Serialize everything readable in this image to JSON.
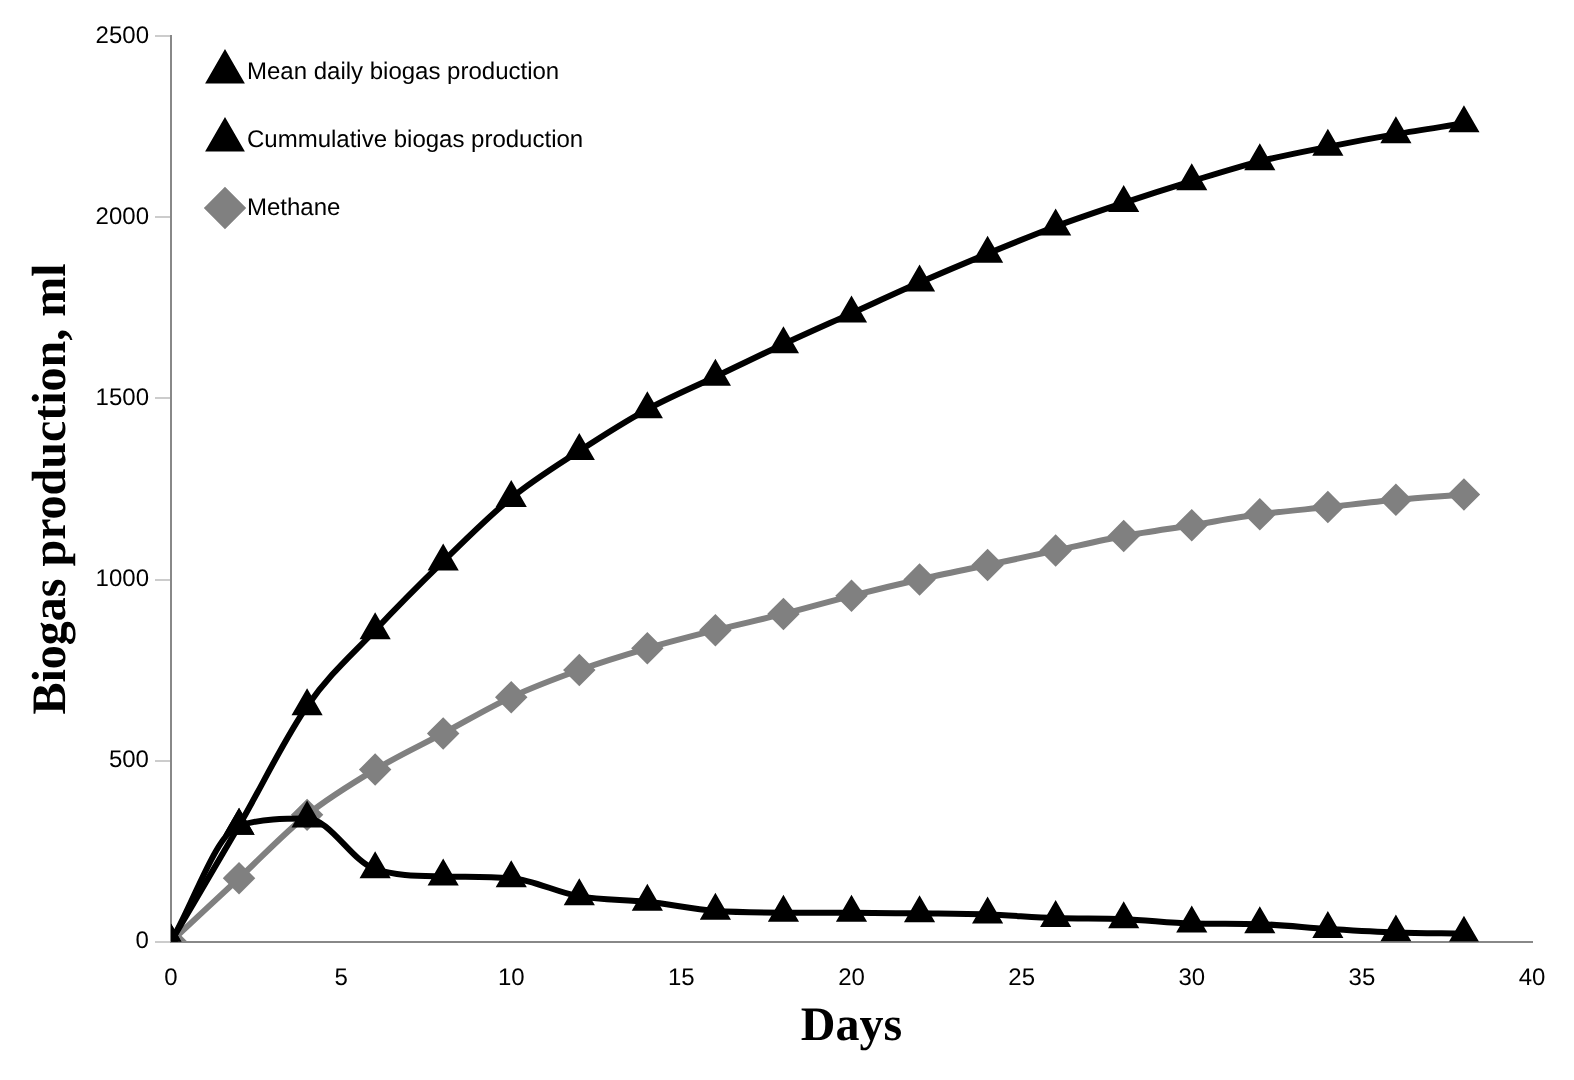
{
  "chart_data": {
    "type": "line",
    "xlabel": "Days",
    "ylabel": "Biogas production, ml",
    "x": [
      0,
      2,
      4,
      6,
      8,
      10,
      12,
      14,
      16,
      18,
      20,
      22,
      24,
      26,
      28,
      30,
      32,
      34,
      36,
      38
    ],
    "series": [
      {
        "name": "Mean daily biogas production",
        "color": "#000000",
        "marker": "triangle",
        "values": [
          0,
          320,
          340,
          200,
          180,
          175,
          125,
          110,
          85,
          80,
          80,
          78,
          75,
          65,
          62,
          50,
          48,
          35,
          25,
          22
        ]
      },
      {
        "name": "Cummulative biogas production",
        "color": "#000000",
        "marker": "triangle",
        "values": [
          0,
          320,
          650,
          860,
          1050,
          1225,
          1355,
          1470,
          1560,
          1650,
          1735,
          1820,
          1900,
          1975,
          2040,
          2100,
          2155,
          2195,
          2230,
          2260
        ]
      },
      {
        "name": "Methane",
        "color": "#808080",
        "marker": "diamond",
        "values": [
          0,
          175,
          350,
          475,
          575,
          675,
          750,
          810,
          860,
          905,
          955,
          1000,
          1040,
          1080,
          1120,
          1150,
          1180,
          1200,
          1220,
          1235
        ]
      }
    ],
    "xlim": [
      0,
      40
    ],
    "xticks": [
      0,
      5,
      10,
      15,
      20,
      25,
      30,
      35,
      40
    ],
    "ylim": [
      0,
      2500
    ],
    "yticks": [
      0,
      500,
      1000,
      1500,
      2000,
      2500
    ],
    "grid": false,
    "legend": "top left"
  }
}
